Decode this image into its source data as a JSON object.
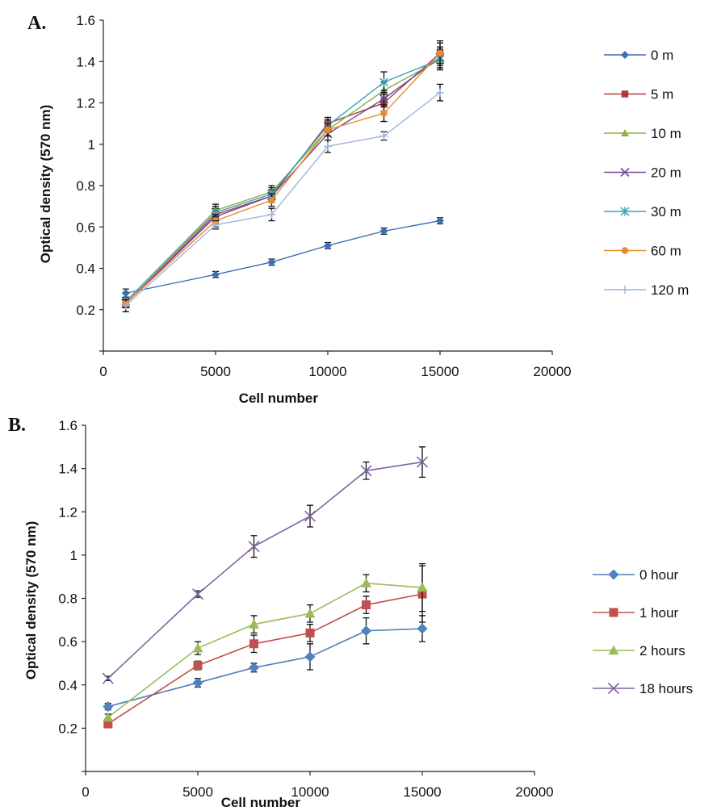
{
  "chart_data": [
    {
      "type": "line",
      "panel_label": "A.",
      "xlabel": "Cell number",
      "ylabel": "Optical density (570 nm)",
      "xlim": [
        0,
        20000
      ],
      "ylim": [
        0,
        1.6
      ],
      "x_ticks": [
        "0",
        "5000",
        "10000",
        "15000",
        "20000"
      ],
      "y_ticks": [
        "0.2",
        "0.4",
        "0.6",
        "0.8",
        "1",
        "1.2",
        "1.4",
        "1.6"
      ],
      "grid": false,
      "legend_position": "right",
      "x": [
        1000,
        5000,
        7500,
        10000,
        12500,
        15000
      ],
      "series": [
        {
          "name": "0 m",
          "color": "#3a6fb5",
          "marker": "diamond",
          "values": [
            0.28,
            0.37,
            0.43,
            0.51,
            0.58,
            0.63
          ],
          "errors": [
            0.02,
            0.015,
            0.015,
            0.015,
            0.015,
            0.015
          ]
        },
        {
          "name": "5 m",
          "color": "#b03a3a",
          "marker": "square",
          "values": [
            0.23,
            0.66,
            0.75,
            1.1,
            1.2,
            1.44
          ],
          "errors": [
            0.02,
            0.03,
            0.03,
            0.03,
            0.04,
            0.06
          ]
        },
        {
          "name": "10 m",
          "color": "#8bb043",
          "marker": "triangle",
          "values": [
            0.24,
            0.68,
            0.77,
            1.07,
            1.26,
            1.41
          ],
          "errors": [
            0.02,
            0.03,
            0.03,
            0.03,
            0.04,
            0.05
          ]
        },
        {
          "name": "20 m",
          "color": "#6d4a9b",
          "marker": "x",
          "values": [
            0.23,
            0.65,
            0.75,
            1.05,
            1.22,
            1.42
          ],
          "errors": [
            0.02,
            0.03,
            0.03,
            0.03,
            0.04,
            0.05
          ]
        },
        {
          "name": "30 m",
          "color": "#3aa3b8",
          "marker": "star",
          "values": [
            0.24,
            0.67,
            0.76,
            1.09,
            1.3,
            1.41
          ],
          "errors": [
            0.02,
            0.03,
            0.03,
            0.03,
            0.05,
            0.05
          ]
        },
        {
          "name": "60 m",
          "color": "#e98a2e",
          "marker": "circle",
          "values": [
            0.23,
            0.63,
            0.73,
            1.07,
            1.15,
            1.44
          ],
          "errors": [
            0.02,
            0.03,
            0.03,
            0.03,
            0.04,
            0.05
          ]
        },
        {
          "name": "120 m",
          "color": "#9fb5dc",
          "marker": "plus",
          "values": [
            0.22,
            0.61,
            0.66,
            0.99,
            1.04,
            1.25
          ],
          "errors": [
            0.03,
            0.02,
            0.03,
            0.03,
            0.02,
            0.04
          ]
        }
      ]
    },
    {
      "type": "line",
      "panel_label": "B.",
      "xlabel": "Cell number",
      "ylabel": "Optical density (570 nm)",
      "xlim": [
        0,
        20000
      ],
      "ylim": [
        0,
        1.6
      ],
      "x_ticks": [
        "0",
        "5000",
        "10000",
        "15000",
        "20000"
      ],
      "y_ticks": [
        "0.2",
        "0.4",
        "0.6",
        "0.8",
        "1",
        "1.2",
        "1.4",
        "1.6"
      ],
      "grid": false,
      "legend_position": "right",
      "x": [
        1000,
        5000,
        7500,
        10000,
        12500,
        15000
      ],
      "series": [
        {
          "name": "0 hour",
          "color": "#4f81bd",
          "marker": "diamond",
          "values": [
            0.3,
            0.41,
            0.48,
            0.53,
            0.65,
            0.66
          ],
          "errors": [
            0.015,
            0.02,
            0.02,
            0.06,
            0.06,
            0.06
          ]
        },
        {
          "name": "1 hour",
          "color": "#c0504d",
          "marker": "square",
          "values": [
            0.22,
            0.49,
            0.59,
            0.64,
            0.77,
            0.82
          ],
          "errors": [
            0.015,
            0.02,
            0.04,
            0.04,
            0.04,
            0.13
          ]
        },
        {
          "name": "2 hours",
          "color": "#9bbb59",
          "marker": "triangle",
          "values": [
            0.25,
            0.57,
            0.68,
            0.73,
            0.87,
            0.85
          ],
          "errors": [
            0.015,
            0.03,
            0.04,
            0.04,
            0.04,
            0.11
          ]
        },
        {
          "name": "18 hours",
          "color": "#8064a2",
          "marker": "x",
          "values": [
            0.43,
            0.82,
            1.04,
            1.18,
            1.39,
            1.43
          ],
          "errors": [
            0.01,
            0.015,
            0.05,
            0.05,
            0.04,
            0.07
          ]
        }
      ]
    }
  ]
}
